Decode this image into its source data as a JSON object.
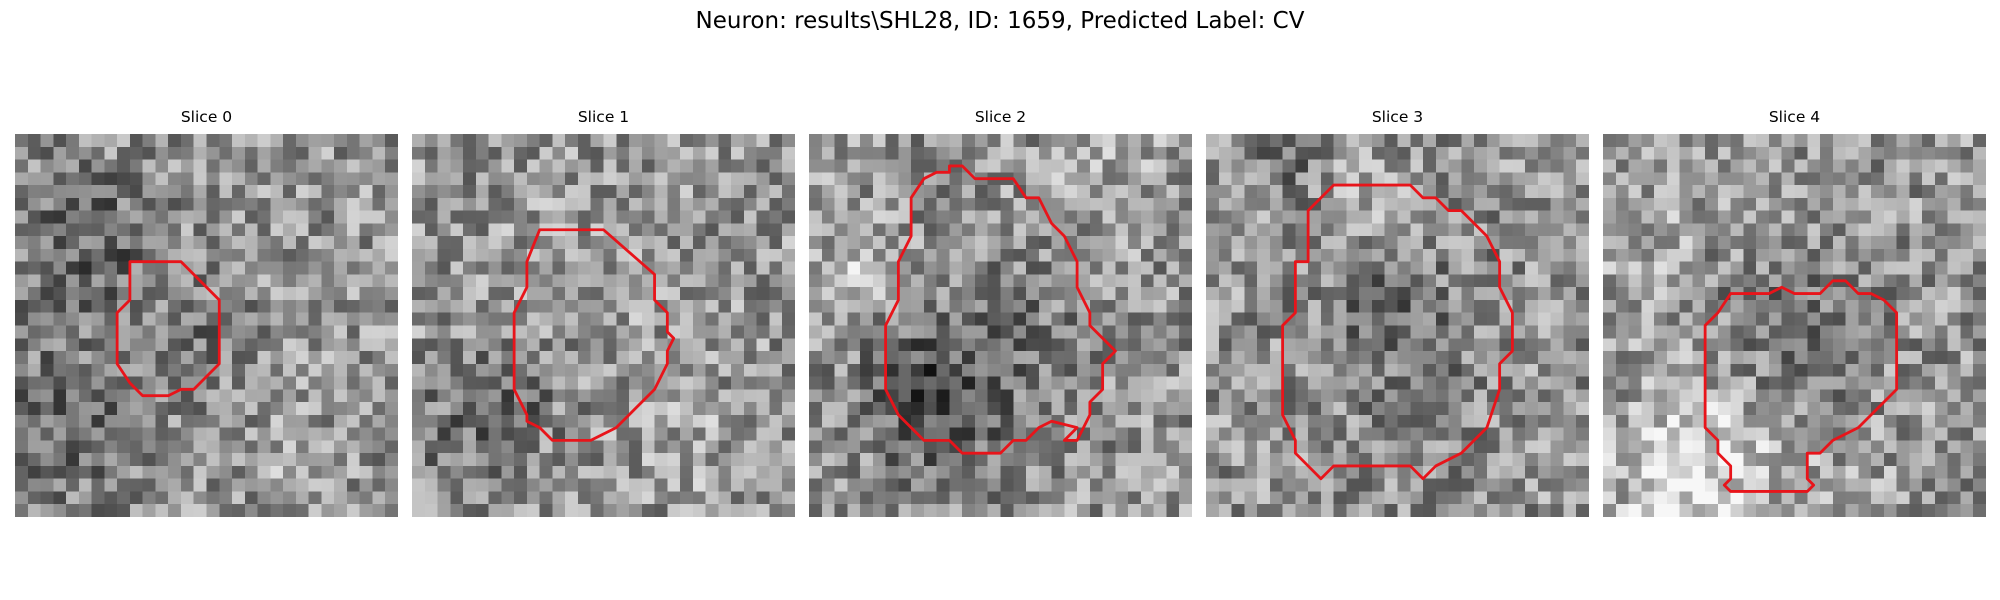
{
  "figure": {
    "suptitle": "Neuron: results\\SHL28, ID: 1659, Predicted Label: CV",
    "contour_color": "#e8141a",
    "colormap": "gray",
    "grid_cells": 30
  },
  "panels": [
    {
      "title": "Slice 0",
      "seed": 11,
      "blob": {
        "cx": 13.0,
        "cy": 15.5,
        "r": 4.5,
        "dark": 0.1
      },
      "contour": [
        [
          9,
          10
        ],
        [
          13,
          10
        ],
        [
          16,
          13
        ],
        [
          16,
          18
        ],
        [
          14,
          20
        ],
        [
          13,
          20
        ],
        [
          12,
          20.5
        ],
        [
          10,
          20.5
        ],
        [
          9,
          19.5
        ],
        [
          8,
          18
        ],
        [
          8,
          14
        ],
        [
          9,
          13
        ]
      ]
    },
    {
      "title": "Slice 1",
      "seed": 23,
      "blob": {
        "cx": 12.0,
        "cy": 16.0,
        "r": 6.0,
        "dark": 0.12
      },
      "contour": [
        [
          10,
          7.5
        ],
        [
          15,
          7.5
        ],
        [
          19,
          11
        ],
        [
          19,
          13
        ],
        [
          20,
          14
        ],
        [
          20,
          15.5
        ],
        [
          20.5,
          16
        ],
        [
          20,
          17
        ],
        [
          20,
          18
        ],
        [
          19,
          20
        ],
        [
          17,
          22
        ],
        [
          16,
          23
        ],
        [
          14,
          24
        ],
        [
          11,
          24
        ],
        [
          10,
          23
        ],
        [
          9,
          22.5
        ],
        [
          9,
          22
        ],
        [
          8,
          20
        ],
        [
          8,
          14
        ],
        [
          9,
          12
        ],
        [
          9,
          10
        ]
      ]
    },
    {
      "title": "Slice 2",
      "seed": 37,
      "blob": {
        "cx": 14.5,
        "cy": 15.0,
        "r": 8.0,
        "dark": 0.1
      },
      "contour": [
        [
          9,
          3.5
        ],
        [
          10,
          3
        ],
        [
          11,
          3
        ],
        [
          11,
          2.5
        ],
        [
          12,
          2.5
        ],
        [
          13,
          3.5
        ],
        [
          16,
          3.5
        ],
        [
          17,
          5
        ],
        [
          18,
          5
        ],
        [
          19,
          7
        ],
        [
          20,
          8
        ],
        [
          21,
          10
        ],
        [
          21,
          12
        ],
        [
          22,
          14
        ],
        [
          22,
          15
        ],
        [
          23,
          16
        ],
        [
          24,
          17
        ],
        [
          23,
          18
        ],
        [
          23,
          20
        ],
        [
          22,
          21
        ],
        [
          22,
          22
        ],
        [
          21,
          24
        ],
        [
          20,
          24
        ],
        [
          21,
          23
        ],
        [
          19,
          22.5
        ],
        [
          18,
          23
        ],
        [
          17,
          24
        ],
        [
          16,
          24
        ],
        [
          15,
          25
        ],
        [
          12,
          25
        ],
        [
          11,
          24
        ],
        [
          9,
          24
        ],
        [
          7,
          22
        ],
        [
          6,
          20
        ],
        [
          6,
          15
        ],
        [
          7,
          13
        ],
        [
          7,
          10
        ],
        [
          8,
          8
        ],
        [
          8,
          5
        ]
      ]
    },
    {
      "title": "Slice 3",
      "seed": 49,
      "blob": {
        "cx": 15.0,
        "cy": 15.0,
        "r": 9.0,
        "dark": 0.08
      },
      "contour": [
        [
          10,
          4
        ],
        [
          13,
          4
        ],
        [
          16,
          4
        ],
        [
          17,
          5
        ],
        [
          18,
          5
        ],
        [
          19,
          6
        ],
        [
          20,
          6
        ],
        [
          22,
          8
        ],
        [
          23,
          10
        ],
        [
          23,
          12
        ],
        [
          24,
          14
        ],
        [
          24,
          17
        ],
        [
          23,
          18
        ],
        [
          23,
          20
        ],
        [
          22,
          23
        ],
        [
          21,
          24
        ],
        [
          20,
          25
        ],
        [
          18,
          26
        ],
        [
          17,
          27
        ],
        [
          16,
          26
        ],
        [
          12,
          26
        ],
        [
          10,
          26
        ],
        [
          9,
          27
        ],
        [
          8,
          26
        ],
        [
          7,
          25
        ],
        [
          7,
          24
        ],
        [
          6,
          22
        ],
        [
          6,
          21
        ],
        [
          6,
          16
        ],
        [
          6,
          15
        ],
        [
          7,
          14
        ],
        [
          7,
          10
        ],
        [
          8,
          10
        ],
        [
          8,
          6
        ]
      ]
    },
    {
      "title": "Slice 4",
      "seed": 61,
      "blob": {
        "cx": 14.0,
        "cy": 15.0,
        "r": 6.5,
        "dark": 0.12
      },
      "contour": [
        [
          10,
          12.5
        ],
        [
          12,
          12.5
        ],
        [
          13,
          12.5
        ],
        [
          14,
          12
        ],
        [
          15,
          12.5
        ],
        [
          17,
          12.5
        ],
        [
          18,
          11.5
        ],
        [
          19,
          11.5
        ],
        [
          20,
          12.5
        ],
        [
          21,
          12.5
        ],
        [
          22,
          13
        ],
        [
          23,
          14
        ],
        [
          23,
          20
        ],
        [
          21,
          22
        ],
        [
          20,
          23
        ],
        [
          18,
          24
        ],
        [
          17,
          25
        ],
        [
          16,
          25
        ],
        [
          16,
          26
        ],
        [
          16,
          27
        ],
        [
          16.5,
          27.5
        ],
        [
          16,
          28
        ],
        [
          10,
          28
        ],
        [
          9.5,
          27.5
        ],
        [
          10,
          27
        ],
        [
          10,
          26
        ],
        [
          9,
          25
        ],
        [
          9,
          24
        ],
        [
          8,
          23
        ],
        [
          8,
          22
        ],
        [
          8,
          21
        ],
        [
          8,
          15
        ],
        [
          9,
          14
        ]
      ]
    }
  ]
}
